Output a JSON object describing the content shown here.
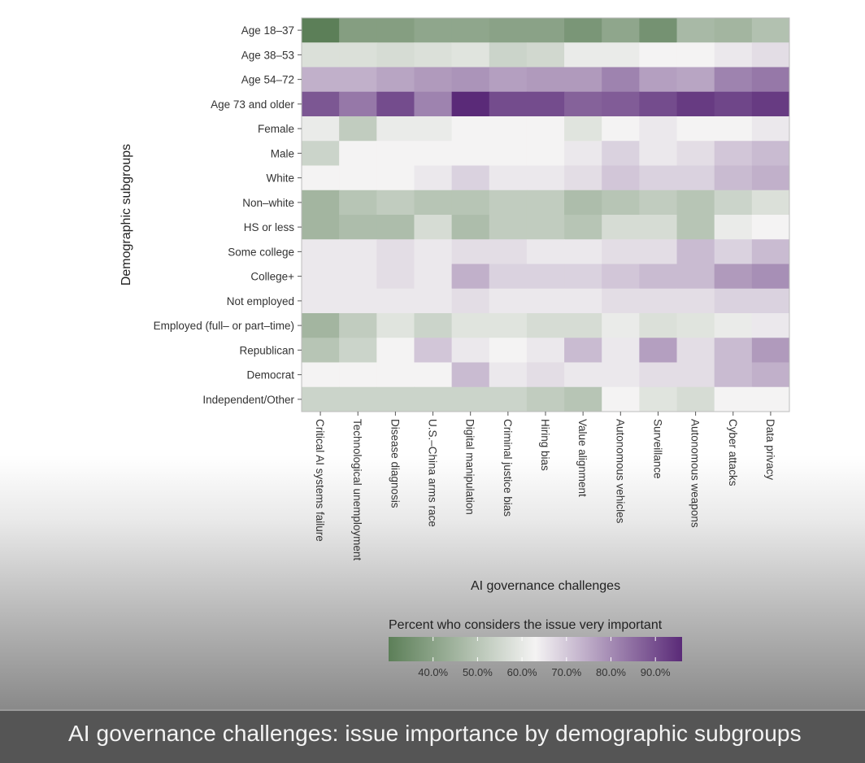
{
  "chart_data": {
    "type": "heatmap",
    "ylabel": "Demographic subgroups",
    "xlabel": "AI governance challenges",
    "rows": [
      "Age 18–37",
      "Age 38–53",
      "Age 54–72",
      "Age 73 and older",
      "Female",
      "Male",
      "White",
      "Non–white",
      "HS or less",
      "Some college",
      "College+",
      "Not employed",
      "Employed (full– or part–time)",
      "Republican",
      "Democrat",
      "Independent/Other"
    ],
    "columns": [
      "Critical AI systems failure",
      "Technological unemployment",
      "Disease diagnosis",
      "U.S.–China arms race",
      "Digital manipulation",
      "Criminal justice bias",
      "Hiring bias",
      "Value alignment",
      "Autonomous vehicles",
      "Surveillance",
      "Autonomous weapons",
      "Cyber attacks",
      "Data privacy"
    ],
    "values": [
      [
        30,
        38,
        38,
        40,
        40,
        39,
        39,
        36,
        40,
        35,
        45,
        44,
        47
      ],
      [
        55,
        55,
        54,
        55,
        56,
        52,
        53,
        58,
        58,
        60,
        60,
        62,
        64
      ],
      [
        72,
        72,
        74,
        76,
        77,
        75,
        76,
        76,
        80,
        75,
        74,
        80,
        82
      ],
      [
        88,
        82,
        90,
        80,
        96,
        90,
        90,
        86,
        87,
        90,
        93,
        91,
        93
      ],
      [
        58,
        50,
        58,
        58,
        60,
        60,
        60,
        56,
        60,
        62,
        60,
        60,
        62
      ],
      [
        52,
        60,
        60,
        60,
        60,
        60,
        60,
        62,
        66,
        62,
        64,
        68,
        70
      ],
      [
        60,
        60,
        60,
        62,
        66,
        62,
        62,
        64,
        68,
        66,
        66,
        70,
        72
      ],
      [
        44,
        48,
        50,
        48,
        48,
        50,
        50,
        46,
        48,
        50,
        48,
        52,
        55
      ],
      [
        44,
        46,
        46,
        54,
        46,
        50,
        50,
        48,
        54,
        54,
        48,
        58,
        60
      ],
      [
        62,
        62,
        64,
        62,
        64,
        64,
        62,
        62,
        64,
        64,
        70,
        66,
        70
      ],
      [
        62,
        62,
        64,
        62,
        72,
        66,
        66,
        66,
        68,
        70,
        70,
        76,
        78
      ],
      [
        62,
        62,
        62,
        62,
        64,
        62,
        62,
        62,
        64,
        64,
        64,
        66,
        66
      ],
      [
        44,
        50,
        56,
        52,
        56,
        56,
        54,
        54,
        58,
        55,
        56,
        58,
        62
      ],
      [
        48,
        52,
        60,
        68,
        62,
        60,
        62,
        70,
        62,
        75,
        64,
        70,
        76
      ],
      [
        60,
        60,
        60,
        60,
        70,
        62,
        64,
        62,
        62,
        64,
        64,
        70,
        72
      ],
      [
        52,
        52,
        52,
        52,
        52,
        52,
        50,
        48,
        60,
        56,
        54,
        60,
        60
      ]
    ],
    "legend_title": "Percent who considers the issue very important",
    "legend_range": [
      30,
      96
    ],
    "legend_ticks": [
      40,
      50,
      60,
      70,
      80,
      90
    ],
    "legend_tick_labels": [
      "40.0%",
      "50.0%",
      "60.0%",
      "70.0%",
      "80.0%",
      "90.0%"
    ],
    "color_low": "#5c7f58",
    "color_mid": "#f4f3f3",
    "color_high": "#5a2a78"
  },
  "caption": "AI governance challenges: issue importance by demographic subgroups"
}
